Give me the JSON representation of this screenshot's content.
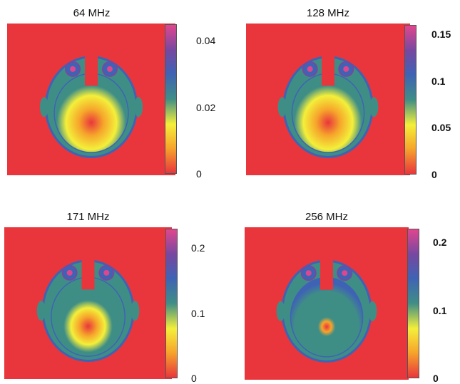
{
  "colors": {
    "background": "#e9363c",
    "colormap": [
      "#e9363c",
      "#f6a52b",
      "#f4ef3a",
      "#3f8e86",
      "#3f63b4",
      "#7648a0",
      "#e0468e"
    ]
  },
  "chart_data": [
    {
      "type": "heatmap",
      "title": "64 MHz",
      "colorbar": {
        "range": [
          0,
          0.045
        ],
        "ticks": [
          0,
          0.02,
          0.04
        ],
        "tick_labels": [
          "0",
          "0.02",
          "0.04"
        ]
      },
      "pattern": {
        "hotspot": "central",
        "intensity": "smooth"
      }
    },
    {
      "type": "heatmap",
      "title": "128 MHz",
      "colorbar": {
        "range": [
          0,
          0.16
        ],
        "ticks": [
          0,
          0.05,
          0.1,
          0.15
        ],
        "tick_labels": [
          "0",
          "0.05",
          "0.1",
          "0.15"
        ]
      },
      "pattern": {
        "hotspot": "central",
        "intensity": "smooth"
      }
    },
    {
      "type": "heatmap",
      "title": "171 MHz",
      "colorbar": {
        "range": [
          0,
          0.23
        ],
        "ticks": [
          0,
          0.1,
          0.2
        ],
        "tick_labels": [
          "0",
          "0.1",
          "0.2"
        ]
      },
      "pattern": {
        "hotspot": "central",
        "intensity": "ring-to-center"
      }
    },
    {
      "type": "heatmap",
      "title": "256 MHz",
      "colorbar": {
        "range": [
          0,
          0.22
        ],
        "ticks": [
          0,
          0.1,
          0.2
        ],
        "tick_labels": [
          "0",
          "0.1",
          "0.2"
        ]
      },
      "pattern": {
        "hotspot": "central-small",
        "intensity": "ring-to-center"
      }
    }
  ]
}
